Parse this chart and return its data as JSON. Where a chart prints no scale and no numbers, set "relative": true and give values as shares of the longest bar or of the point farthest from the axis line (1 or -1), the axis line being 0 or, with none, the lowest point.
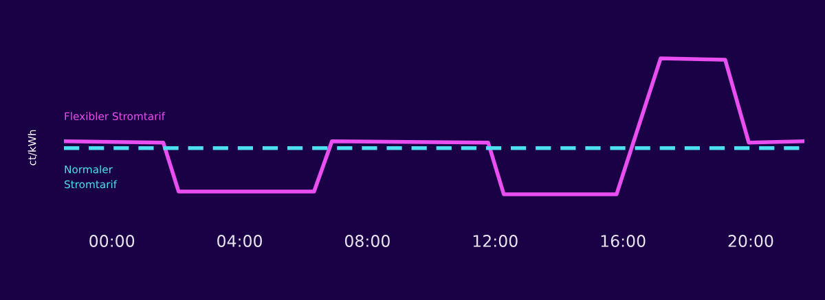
{
  "chart_data": {
    "type": "line",
    "relative": true,
    "ylabel": "ct/kWh",
    "xlim": [
      -1.5,
      21.68
    ],
    "xticks": [
      {
        "value": 0,
        "label": "00:00"
      },
      {
        "value": 4,
        "label": "04:00"
      },
      {
        "value": 8,
        "label": "08:00"
      },
      {
        "value": 12,
        "label": "12:00"
      },
      {
        "value": 16,
        "label": "16:00"
      },
      {
        "value": 20,
        "label": "20:00"
      }
    ],
    "grid": false,
    "legend": false,
    "marker": "none",
    "series": [
      {
        "name": "Flexibler Stromtarif",
        "color": "#e84ef0",
        "line_style": "solid",
        "x": [
          -1.5,
          1.61,
          2.09,
          6.33,
          6.89,
          11.78,
          12.27,
          15.8,
          17.18,
          19.2,
          19.94,
          21.68
        ],
        "values": [
          0.39,
          0.38,
          0.02,
          0.02,
          0.39,
          0.38,
          0.0,
          0.0,
          1.0,
          0.99,
          0.38,
          0.39
        ]
      },
      {
        "name": "Normaler\nStromtarif",
        "color": "#4ee0f0",
        "line_style": "dashed",
        "x": [
          -1.5,
          21.68
        ],
        "values": [
          0.34,
          0.34
        ]
      }
    ]
  }
}
